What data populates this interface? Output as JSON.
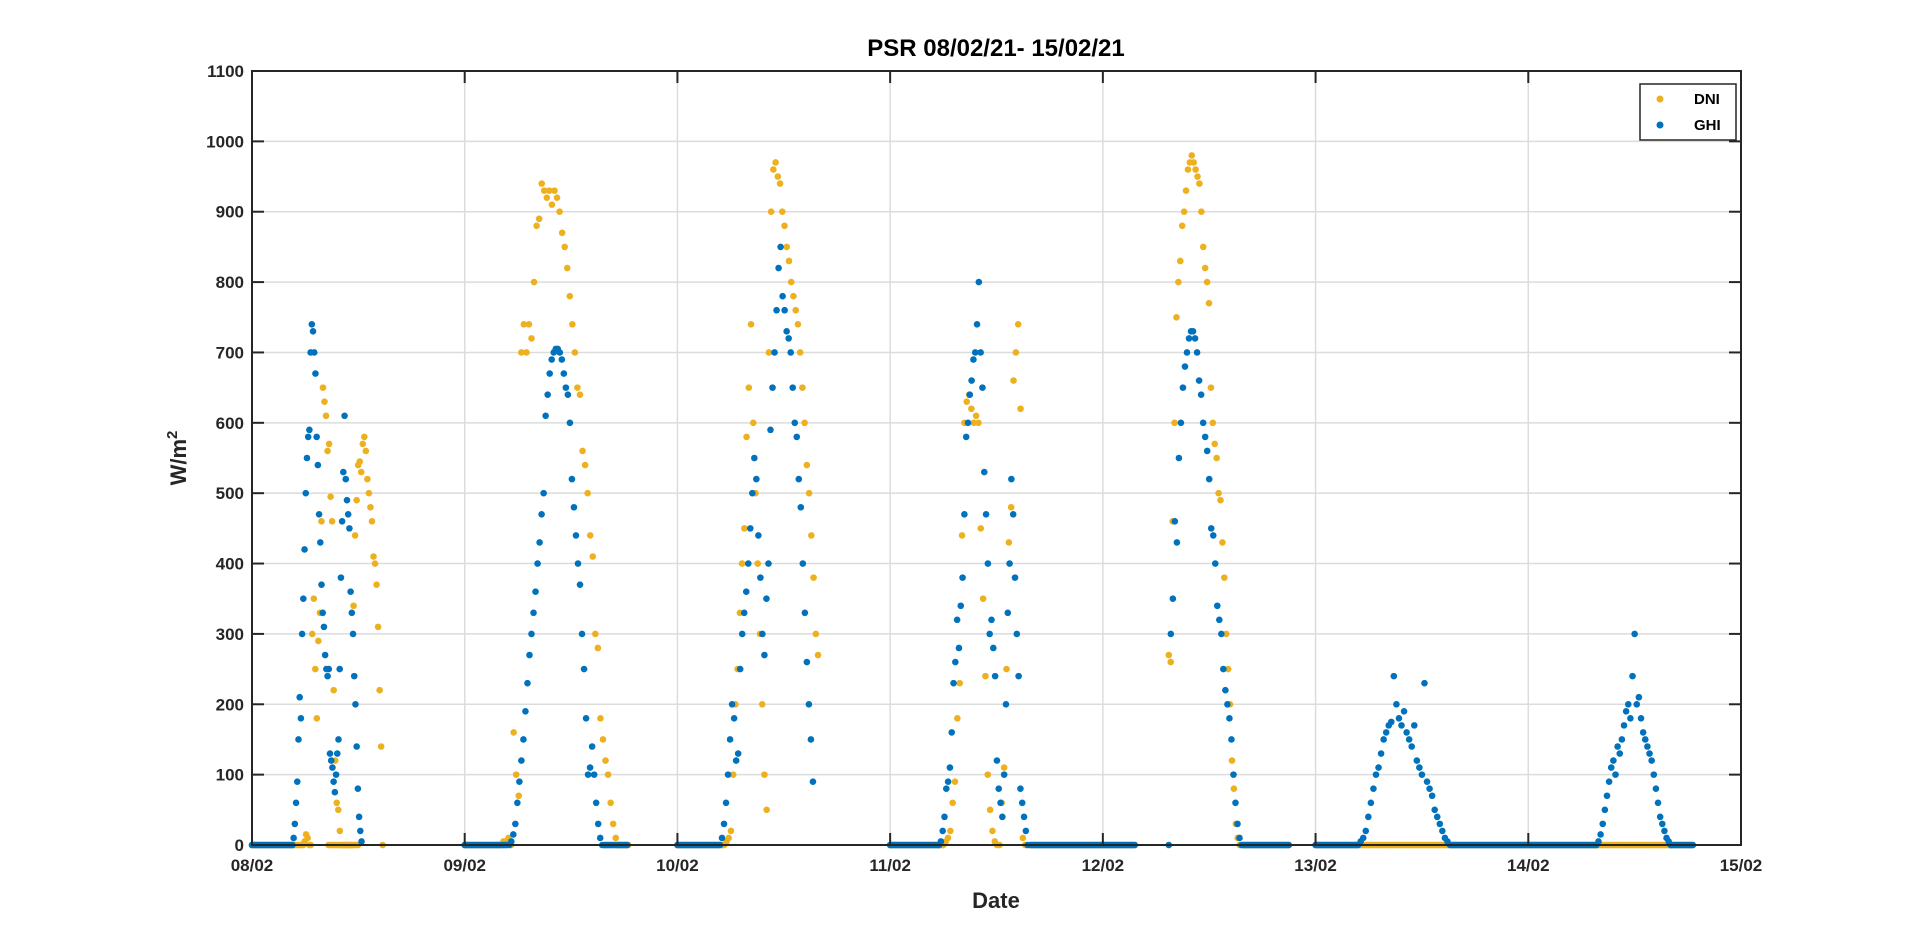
{
  "chart_data": {
    "type": "scatter",
    "title": "PSR 08/02/21- 15/02/21",
    "xlabel": "Date",
    "ylabel": "W/m",
    "ylabel_superscript": "2",
    "xlim_days": [
      0,
      7
    ],
    "ylim": [
      0,
      1100
    ],
    "yticks": [
      "0",
      "100",
      "200",
      "300",
      "400",
      "500",
      "600",
      "700",
      "800",
      "900",
      "1000",
      "1100"
    ],
    "xticks": [
      "08/02",
      "09/02",
      "10/02",
      "11/02",
      "12/02",
      "13/02",
      "14/02",
      "15/02"
    ],
    "grid": true,
    "legend_position": "top-right",
    "x_units": "days since 08/02",
    "zero_sample_step_days": 0.0069,
    "series": [
      {
        "name": "DNI",
        "color": "#EDB120",
        "zero_segments": [
          [
            0,
            0.24
          ],
          [
            0.36,
            0.5
          ],
          [
            1.0,
            1.17
          ],
          [
            1.72,
            1.77
          ],
          [
            2.0,
            2.22
          ],
          [
            3.0,
            3.25
          ],
          [
            3.66,
            4.15
          ],
          [
            4.66,
            4.88
          ],
          [
            5.0,
            6.78
          ]
        ],
        "segments": [
          {
            "start": 0.24,
            "step": 0.0072,
            "values": [
              0,
              5,
              15,
              10,
              0,
              0,
              300,
              350,
              250,
              180,
              290,
              330,
              460,
              650,
              630,
              610,
              560,
              570,
              495,
              460,
              220,
              120,
              60,
              50,
              20,
              0,
              0,
              0,
              0,
              0,
              0,
              0,
              0,
              340,
              440,
              490,
              540,
              545,
              530,
              570,
              580,
              560,
              520,
              500,
              480,
              460,
              410,
              400,
              370,
              310,
              220,
              140,
              0
            ]
          },
          {
            "start": 1.17,
            "step": 0.012,
            "values": [
              0,
              5,
              5,
              10,
              0,
              160,
              100,
              70,
              700,
              740,
              700,
              740,
              720,
              800,
              880,
              890,
              940,
              930,
              920,
              930,
              910,
              930,
              920,
              900,
              870,
              850,
              820,
              780,
              740,
              700,
              650,
              640,
              560,
              540,
              500,
              440,
              410,
              300,
              280,
              180,
              150,
              120,
              100,
              60,
              30,
              10,
              0
            ]
          },
          {
            "start": 2.22,
            "step": 0.0105,
            "values": [
              0,
              5,
              10,
              20,
              100,
              200,
              250,
              330,
              400,
              450,
              580,
              650,
              740,
              600,
              500,
              400,
              300,
              200,
              100,
              50,
              700,
              900,
              960,
              970,
              950,
              940,
              900,
              880,
              850,
              830,
              800,
              780,
              760,
              740,
              700,
              650,
              600,
              540,
              500,
              440,
              380,
              300,
              270
            ]
          },
          {
            "start": 3.25,
            "step": 0.011,
            "values": [
              0,
              5,
              10,
              20,
              60,
              90,
              180,
              230,
              440,
              600,
              630,
              640,
              620,
              600,
              610,
              600,
              450,
              350,
              240,
              100,
              50,
              20,
              5,
              0,
              0,
              60,
              110,
              250,
              430,
              480,
              660,
              700,
              740,
              620,
              10,
              0
            ]
          },
          {
            "start": 4.31,
            "step": 0.009,
            "values": [
              270,
              260,
              460,
              600,
              750,
              800,
              830,
              880,
              900,
              930,
              960,
              970,
              980,
              970,
              960,
              950,
              940,
              900,
              850,
              820,
              800,
              770,
              650,
              600,
              570,
              550,
              500,
              490,
              430,
              380,
              300,
              250,
              200,
              120,
              80,
              30,
              10,
              0
            ]
          }
        ]
      },
      {
        "name": "GHI",
        "color": "#0072BD",
        "zero_segments": [
          [
            0,
            0.19
          ],
          [
            1.0,
            1.2
          ],
          [
            1.66,
            1.77
          ],
          [
            2.0,
            2.2
          ],
          [
            3.0,
            3.23
          ],
          [
            3.66,
            4.15
          ],
          [
            4.66,
            4.88
          ],
          [
            5.0,
            5.2
          ],
          [
            5.64,
            6.32
          ],
          [
            6.67,
            6.78
          ]
        ],
        "segments": [
          {
            "start": 0.19,
            "step": 0.0057,
            "values": [
              0,
              10,
              30,
              60,
              90,
              150,
              210,
              180,
              300,
              350,
              420,
              500,
              550,
              580,
              590,
              700,
              740,
              730,
              700,
              670,
              580,
              540,
              470,
              430,
              370,
              330,
              310,
              270,
              250,
              240,
              250,
              130,
              120,
              110,
              90,
              75,
              100,
              130,
              150,
              250,
              380,
              460,
              530,
              610,
              520,
              490,
              470,
              450,
              360,
              330,
              300,
              240,
              200,
              140,
              80,
              40,
              20,
              5
            ]
          },
          {
            "start": 1.2,
            "step": 0.0095,
            "values": [
              0,
              0,
              5,
              15,
              30,
              60,
              90,
              120,
              150,
              190,
              230,
              270,
              300,
              330,
              360,
              400,
              430,
              470,
              500,
              610,
              640,
              670,
              690,
              700,
              705,
              705,
              700,
              690,
              670,
              650,
              640,
              600,
              520,
              480,
              440,
              400,
              370,
              300,
              250,
              180,
              100,
              110,
              140,
              100,
              60,
              30,
              10,
              0,
              0
            ]
          },
          {
            "start": 2.2,
            "step": 0.0095,
            "values": [
              0,
              10,
              30,
              60,
              100,
              150,
              200,
              180,
              120,
              130,
              250,
              300,
              330,
              360,
              400,
              450,
              500,
              550,
              520,
              440,
              380,
              300,
              270,
              350,
              400,
              590,
              650,
              700,
              760,
              820,
              850,
              780,
              760,
              730,
              720,
              700,
              650,
              600,
              580,
              520,
              480,
              400,
              330,
              260,
              200,
              150,
              90
            ]
          },
          {
            "start": 3.23,
            "step": 0.0085,
            "values": [
              0,
              5,
              20,
              40,
              80,
              90,
              110,
              160,
              230,
              260,
              320,
              280,
              340,
              380,
              470,
              580,
              600,
              640,
              660,
              690,
              700,
              740,
              800,
              700,
              650,
              530,
              470,
              400,
              300,
              320,
              280,
              240,
              120,
              80,
              60,
              40,
              100,
              200,
              330,
              400,
              520,
              470,
              380,
              300,
              240,
              80,
              60,
              40,
              20,
              0
            ]
          },
          {
            "start": 4.31,
            "step": 0.0095,
            "values": [
              0,
              300,
              350,
              460,
              430,
              550,
              600,
              650,
              680,
              700,
              720,
              730,
              730,
              720,
              700,
              660,
              640,
              600,
              580,
              560,
              520,
              450,
              440,
              400,
              340,
              320,
              300,
              250,
              220,
              200,
              180,
              150,
              100,
              60,
              30,
              10,
              0
            ]
          },
          {
            "start": 5.2,
            "step": 0.012,
            "values": [
              0,
              5,
              10,
              20,
              40,
              60,
              80,
              100,
              110,
              130,
              150,
              160,
              170,
              175,
              240,
              200,
              180,
              170,
              190,
              160,
              150,
              140,
              170,
              120,
              110,
              100,
              230,
              90,
              80,
              70,
              50,
              40,
              30,
              20,
              10,
              5,
              0
            ]
          },
          {
            "start": 6.32,
            "step": 0.01,
            "values": [
              0,
              5,
              15,
              30,
              50,
              70,
              90,
              110,
              120,
              100,
              140,
              130,
              150,
              170,
              190,
              200,
              180,
              240,
              300,
              200,
              210,
              180,
              160,
              150,
              140,
              130,
              120,
              100,
              80,
              60,
              40,
              30,
              20,
              10,
              5,
              0
            ]
          }
        ]
      }
    ]
  }
}
